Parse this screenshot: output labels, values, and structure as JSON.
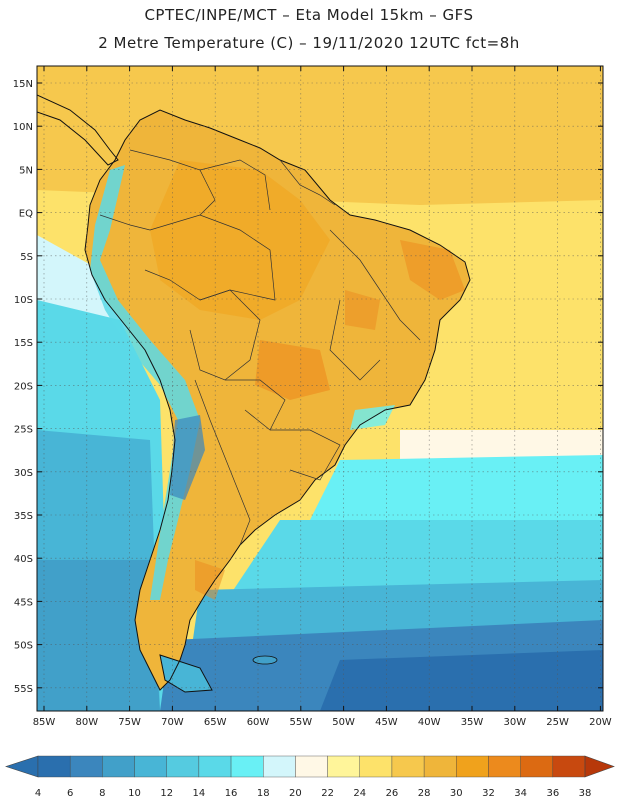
{
  "header": {
    "line1": "CPTEC/INPE/MCT –  Eta Model 15km – GFS",
    "line2": "2 Metre Temperature (C) – 19/11/2020 12UTC fct=8h"
  },
  "map": {
    "lat_labels": [
      "15N",
      "10N",
      "5N",
      "EQ",
      "5S",
      "10S",
      "15S",
      "20S",
      "25S",
      "30S",
      "35S",
      "40S",
      "45S",
      "50S",
      "55S"
    ],
    "lon_labels": [
      "85W",
      "80W",
      "75W",
      "70W",
      "65W",
      "60W",
      "55W",
      "50W",
      "45W",
      "40W",
      "35W",
      "30W",
      "25W",
      "20W"
    ]
  },
  "colorbar": {
    "ticks": [
      "4",
      "6",
      "8",
      "10",
      "12",
      "14",
      "16",
      "18",
      "20",
      "22",
      "24",
      "26",
      "28",
      "30",
      "32",
      "34",
      "36",
      "38"
    ],
    "colors": [
      "#2a6fae",
      "#3b86bd",
      "#41a0c9",
      "#48b5d6",
      "#55cbe0",
      "#5ad9e8",
      "#69f0f5",
      "#d3f6fb",
      "#fff8e6",
      "#fff59a",
      "#fde26a",
      "#f6c84d",
      "#efb53a",
      "#f0a21c",
      "#ec8a1d",
      "#dc6a12",
      "#c8490f",
      "#b7380a"
    ]
  }
}
